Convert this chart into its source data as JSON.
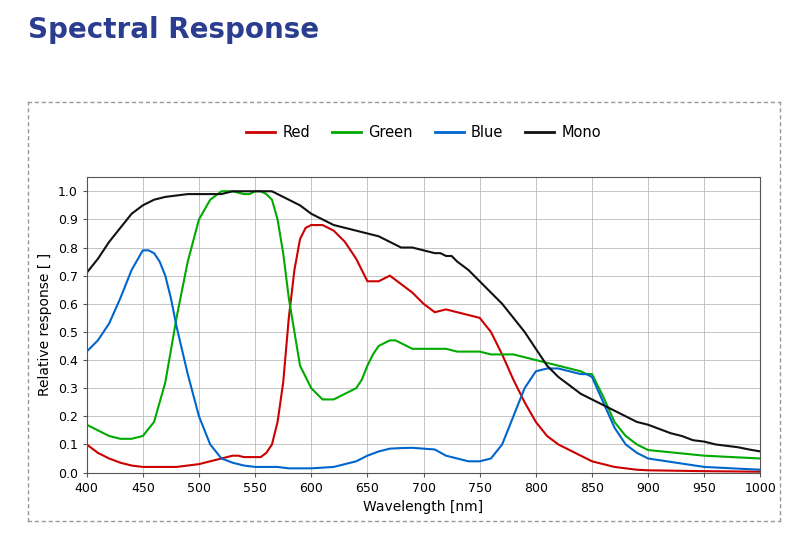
{
  "title": "Spectral Response",
  "title_color": "#2b3d8f",
  "xlabel": "Wavelength [nm]",
  "ylabel": "Relative response [ ]",
  "xlim": [
    400,
    1000
  ],
  "ylim": [
    0.0,
    1.05
  ],
  "xticks": [
    400,
    450,
    500,
    550,
    600,
    650,
    700,
    750,
    800,
    850,
    900,
    950,
    1000
  ],
  "yticks": [
    0.0,
    0.1,
    0.2,
    0.3,
    0.4,
    0.5,
    0.6,
    0.7,
    0.8,
    0.9,
    1.0
  ],
  "bg_color": "#ffffff",
  "grid_color": "#bbbbbb",
  "red": {
    "color": "#cc0000",
    "x": [
      400,
      410,
      420,
      430,
      440,
      450,
      460,
      470,
      480,
      490,
      500,
      510,
      520,
      525,
      530,
      535,
      540,
      545,
      550,
      555,
      560,
      565,
      570,
      575,
      580,
      585,
      590,
      595,
      600,
      605,
      610,
      615,
      620,
      625,
      630,
      640,
      650,
      660,
      670,
      680,
      690,
      700,
      710,
      720,
      730,
      740,
      750,
      760,
      770,
      780,
      790,
      800,
      810,
      820,
      830,
      840,
      850,
      860,
      870,
      880,
      890,
      900,
      950,
      1000
    ],
    "y": [
      0.1,
      0.07,
      0.05,
      0.035,
      0.025,
      0.02,
      0.02,
      0.02,
      0.02,
      0.025,
      0.03,
      0.04,
      0.05,
      0.055,
      0.06,
      0.06,
      0.055,
      0.055,
      0.055,
      0.055,
      0.07,
      0.1,
      0.18,
      0.32,
      0.55,
      0.72,
      0.83,
      0.87,
      0.88,
      0.88,
      0.88,
      0.87,
      0.86,
      0.84,
      0.82,
      0.76,
      0.68,
      0.68,
      0.7,
      0.67,
      0.64,
      0.6,
      0.57,
      0.58,
      0.57,
      0.56,
      0.55,
      0.5,
      0.42,
      0.33,
      0.25,
      0.18,
      0.13,
      0.1,
      0.08,
      0.06,
      0.04,
      0.03,
      0.02,
      0.015,
      0.01,
      0.008,
      0.005,
      0.003
    ]
  },
  "green": {
    "color": "#00aa00",
    "x": [
      400,
      410,
      420,
      430,
      440,
      450,
      460,
      470,
      480,
      490,
      500,
      510,
      520,
      530,
      540,
      545,
      550,
      555,
      560,
      565,
      570,
      575,
      580,
      590,
      600,
      610,
      620,
      630,
      640,
      645,
      650,
      655,
      660,
      665,
      670,
      675,
      680,
      685,
      690,
      695,
      700,
      710,
      720,
      730,
      740,
      750,
      760,
      770,
      780,
      790,
      800,
      810,
      820,
      830,
      840,
      845,
      850,
      860,
      870,
      880,
      890,
      900,
      950,
      1000
    ],
    "y": [
      0.17,
      0.15,
      0.13,
      0.12,
      0.12,
      0.13,
      0.18,
      0.32,
      0.55,
      0.75,
      0.9,
      0.97,
      1.0,
      1.0,
      0.99,
      0.99,
      1.0,
      1.0,
      0.99,
      0.97,
      0.9,
      0.78,
      0.62,
      0.38,
      0.3,
      0.26,
      0.26,
      0.28,
      0.3,
      0.33,
      0.38,
      0.42,
      0.45,
      0.46,
      0.47,
      0.47,
      0.46,
      0.45,
      0.44,
      0.44,
      0.44,
      0.44,
      0.44,
      0.43,
      0.43,
      0.43,
      0.42,
      0.42,
      0.42,
      0.41,
      0.4,
      0.39,
      0.38,
      0.37,
      0.36,
      0.35,
      0.35,
      0.27,
      0.18,
      0.13,
      0.1,
      0.08,
      0.06,
      0.05
    ]
  },
  "blue": {
    "color": "#0066cc",
    "x": [
      400,
      410,
      420,
      430,
      440,
      450,
      455,
      460,
      465,
      470,
      475,
      480,
      490,
      500,
      510,
      520,
      530,
      540,
      550,
      560,
      570,
      580,
      590,
      600,
      620,
      640,
      650,
      660,
      670,
      680,
      690,
      700,
      710,
      720,
      730,
      740,
      750,
      760,
      770,
      780,
      790,
      800,
      810,
      820,
      830,
      840,
      845,
      850,
      860,
      870,
      880,
      890,
      900,
      950,
      1000
    ],
    "y": [
      0.43,
      0.47,
      0.53,
      0.62,
      0.72,
      0.79,
      0.79,
      0.78,
      0.75,
      0.7,
      0.62,
      0.52,
      0.35,
      0.2,
      0.1,
      0.05,
      0.035,
      0.025,
      0.02,
      0.02,
      0.02,
      0.015,
      0.015,
      0.015,
      0.02,
      0.04,
      0.06,
      0.075,
      0.085,
      0.087,
      0.088,
      0.085,
      0.082,
      0.06,
      0.05,
      0.04,
      0.04,
      0.05,
      0.1,
      0.2,
      0.3,
      0.36,
      0.37,
      0.37,
      0.36,
      0.35,
      0.35,
      0.34,
      0.25,
      0.16,
      0.1,
      0.07,
      0.05,
      0.02,
      0.01
    ]
  },
  "mono": {
    "color": "#111111",
    "x": [
      400,
      410,
      420,
      430,
      440,
      450,
      455,
      460,
      470,
      480,
      490,
      500,
      510,
      520,
      530,
      540,
      545,
      550,
      555,
      560,
      565,
      570,
      580,
      590,
      600,
      605,
      610,
      615,
      620,
      630,
      640,
      650,
      660,
      670,
      680,
      690,
      700,
      710,
      715,
      720,
      725,
      730,
      740,
      750,
      760,
      770,
      780,
      790,
      800,
      810,
      820,
      830,
      840,
      850,
      860,
      870,
      880,
      890,
      900,
      910,
      920,
      930,
      940,
      950,
      960,
      970,
      980,
      990,
      1000
    ],
    "y": [
      0.71,
      0.76,
      0.82,
      0.87,
      0.92,
      0.95,
      0.96,
      0.97,
      0.98,
      0.985,
      0.99,
      0.99,
      0.99,
      0.99,
      1.0,
      1.0,
      1.0,
      1.0,
      1.0,
      1.0,
      1.0,
      0.99,
      0.97,
      0.95,
      0.92,
      0.91,
      0.9,
      0.89,
      0.88,
      0.87,
      0.86,
      0.85,
      0.84,
      0.82,
      0.8,
      0.8,
      0.79,
      0.78,
      0.78,
      0.77,
      0.77,
      0.75,
      0.72,
      0.68,
      0.64,
      0.6,
      0.55,
      0.5,
      0.44,
      0.38,
      0.34,
      0.31,
      0.28,
      0.26,
      0.24,
      0.22,
      0.2,
      0.18,
      0.17,
      0.155,
      0.14,
      0.13,
      0.115,
      0.11,
      0.1,
      0.095,
      0.09,
      0.082,
      0.075
    ]
  },
  "legend": [
    {
      "label": "Red",
      "color": "#cc0000"
    },
    {
      "label": "Green",
      "color": "#00aa00"
    },
    {
      "label": "Blue",
      "color": "#0066cc"
    },
    {
      "label": "Mono",
      "color": "#111111"
    }
  ]
}
